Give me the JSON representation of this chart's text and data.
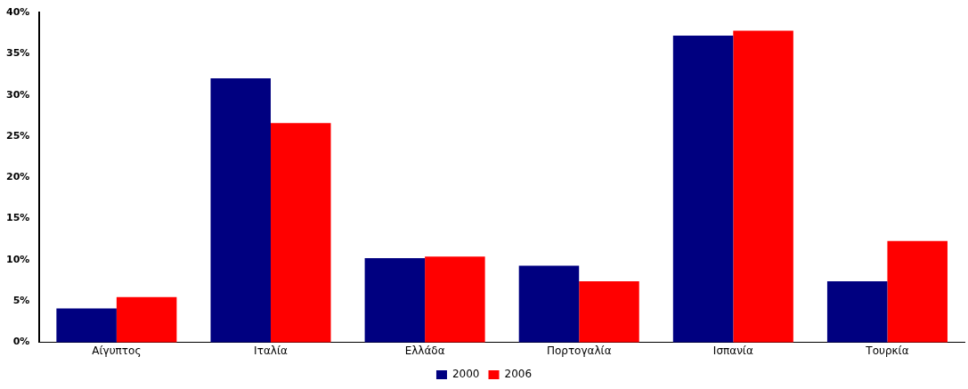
{
  "chart_data": {
    "type": "bar",
    "categories": [
      "Αίγυπτος",
      "Ιταλία",
      "Ελλάδα",
      "Πορτογαλία",
      "Ισπανία",
      "Τουρκία"
    ],
    "series": [
      {
        "name": "2000",
        "color": "#000080",
        "values": [
          4.1,
          32.0,
          10.2,
          9.3,
          37.2,
          7.4
        ]
      },
      {
        "name": "2006",
        "color": "#ff0000",
        "values": [
          5.5,
          26.6,
          10.4,
          7.4,
          37.8,
          12.3
        ]
      }
    ],
    "ylim": [
      0,
      40
    ],
    "yticks": [
      {
        "value": 0,
        "label": "0%"
      },
      {
        "value": 5,
        "label": "5%"
      },
      {
        "value": 10,
        "label": "10%"
      },
      {
        "value": 15,
        "label": "15%"
      },
      {
        "value": 20,
        "label": "20%"
      },
      {
        "value": 25,
        "label": "25%"
      },
      {
        "value": 30,
        "label": "30%"
      },
      {
        "value": 35,
        "label": "35%"
      },
      {
        "value": 40,
        "label": "40%"
      }
    ],
    "grid": false,
    "legend": "bottom"
  }
}
